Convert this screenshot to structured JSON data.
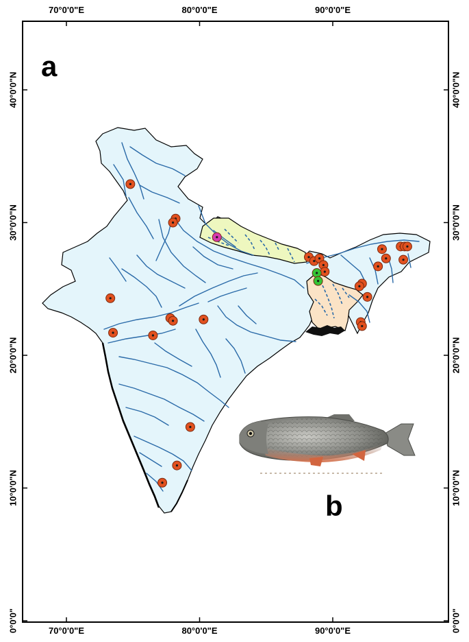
{
  "figure": {
    "panel_a": "a",
    "panel_b": "b"
  },
  "axes": {
    "top_ticks": [
      "70°0'0\"E",
      "80°0'0\"E",
      "90°0'0\"E"
    ],
    "bottom_ticks": [
      "70°0'0\"E",
      "80°0'0\"E",
      "90°0'0\"E"
    ],
    "left_ticks": [
      "40°0'0\"N",
      "30°0'0\"N",
      "20°0'0\"N",
      "10°0'0\"N",
      "0°0'0\""
    ],
    "right_ticks": [
      "40°0'0\"N",
      "30°0'0\"N",
      "20°0'0\"N",
      "10°0'0\"N",
      "0°0'0\""
    ],
    "longitude_values": [
      70,
      80,
      90
    ],
    "latitude_values": [
      40,
      30,
      20,
      10,
      0
    ]
  },
  "colors": {
    "land": "#e4f5fb",
    "nepal": "#eef7bf",
    "bangladesh": "#fbe3c6",
    "river": "#2a6aa8",
    "site_marker": "#e2511f",
    "nepal_marker": "#d63bb0",
    "bangladesh_marker": "#35c435"
  },
  "markers": {
    "india_sites": [
      {
        "lon": 74.8,
        "lat": 32.9
      },
      {
        "lon": 78.2,
        "lat": 30.3
      },
      {
        "lon": 78.0,
        "lat": 30.0
      },
      {
        "lon": 73.3,
        "lat": 24.3
      },
      {
        "lon": 73.5,
        "lat": 21.7
      },
      {
        "lon": 76.5,
        "lat": 21.5
      },
      {
        "lon": 77.8,
        "lat": 22.8
      },
      {
        "lon": 78.0,
        "lat": 22.6
      },
      {
        "lon": 80.3,
        "lat": 22.7
      },
      {
        "lon": 79.3,
        "lat": 14.6
      },
      {
        "lon": 78.3,
        "lat": 11.7
      },
      {
        "lon": 77.2,
        "lat": 10.4
      },
      {
        "lon": 88.2,
        "lat": 27.4
      },
      {
        "lon": 88.6,
        "lat": 27.1
      },
      {
        "lon": 89.0,
        "lat": 27.3
      },
      {
        "lon": 89.3,
        "lat": 26.8
      },
      {
        "lon": 89.4,
        "lat": 26.3
      },
      {
        "lon": 93.7,
        "lat": 28.0
      },
      {
        "lon": 93.4,
        "lat": 26.7
      },
      {
        "lon": 94.0,
        "lat": 27.3
      },
      {
        "lon": 95.1,
        "lat": 28.2
      },
      {
        "lon": 95.4,
        "lat": 28.2
      },
      {
        "lon": 95.6,
        "lat": 28.2
      },
      {
        "lon": 95.3,
        "lat": 27.2
      },
      {
        "lon": 92.2,
        "lat": 25.4
      },
      {
        "lon": 92.0,
        "lat": 25.2
      },
      {
        "lon": 92.6,
        "lat": 24.4
      },
      {
        "lon": 92.1,
        "lat": 22.5
      },
      {
        "lon": 92.2,
        "lat": 22.2
      }
    ],
    "nepal_sites": [
      {
        "lon": 81.3,
        "lat": 28.9
      }
    ],
    "bangladesh_sites": [
      {
        "lon": 88.8,
        "lat": 26.2
      },
      {
        "lon": 88.9,
        "lat": 25.6
      }
    ]
  }
}
